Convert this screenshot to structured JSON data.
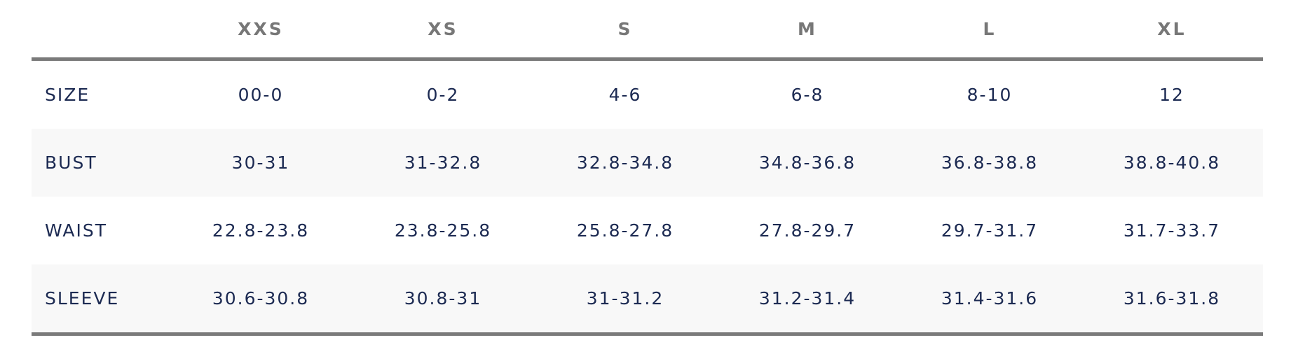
{
  "table": {
    "columns": [
      "XXS",
      "XS",
      "S",
      "M",
      "L",
      "XL"
    ],
    "rows": [
      {
        "label": "SIZE",
        "values": [
          "00-0",
          "0-2",
          "4-6",
          "6-8",
          "8-10",
          "12"
        ]
      },
      {
        "label": "BUST",
        "values": [
          "30-31",
          "31-32.8",
          "32.8-34.8",
          "34.8-36.8",
          "36.8-38.8",
          "38.8-40.8"
        ]
      },
      {
        "label": "WAIST",
        "values": [
          "22.8-23.8",
          "23.8-25.8",
          "25.8-27.8",
          "27.8-29.7",
          "29.7-31.7",
          "31.7-33.7"
        ]
      },
      {
        "label": "SLEEVE",
        "values": [
          "30.6-30.8",
          "30.8-31",
          "31-31.2",
          "31.2-31.4",
          "31.4-31.6",
          "31.6-31.8"
        ]
      }
    ]
  }
}
